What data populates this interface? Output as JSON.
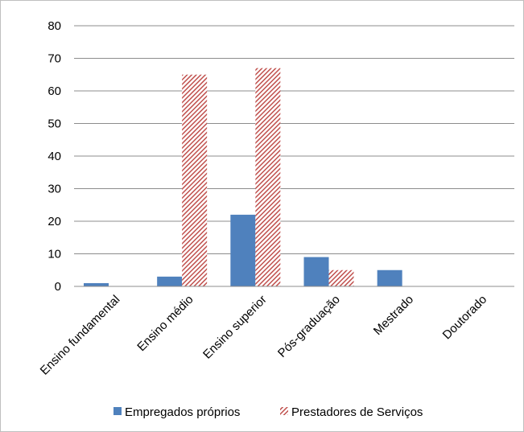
{
  "chart_data": {
    "type": "bar",
    "title": "",
    "xlabel": "",
    "ylabel": "",
    "ylim": [
      0,
      80
    ],
    "yticks": [
      0,
      10,
      20,
      30,
      40,
      50,
      60,
      70,
      80
    ],
    "grid": true,
    "legend_position": "bottom",
    "categories": [
      "Ensino fundamental",
      "Ensino médio",
      "Ensino superior",
      "Pós-graduação",
      "Mestrado",
      "Doutorado"
    ],
    "series": [
      {
        "name": "Empregados próprios",
        "values": [
          1,
          3,
          22,
          9,
          5,
          0
        ],
        "color": "#4f81bd",
        "pattern": "solid"
      },
      {
        "name": "Prestadores de Serviços",
        "values": [
          0,
          65,
          67,
          5,
          0,
          0
        ],
        "color": "#c0504d",
        "pattern": "diagonal-hatch"
      }
    ]
  }
}
